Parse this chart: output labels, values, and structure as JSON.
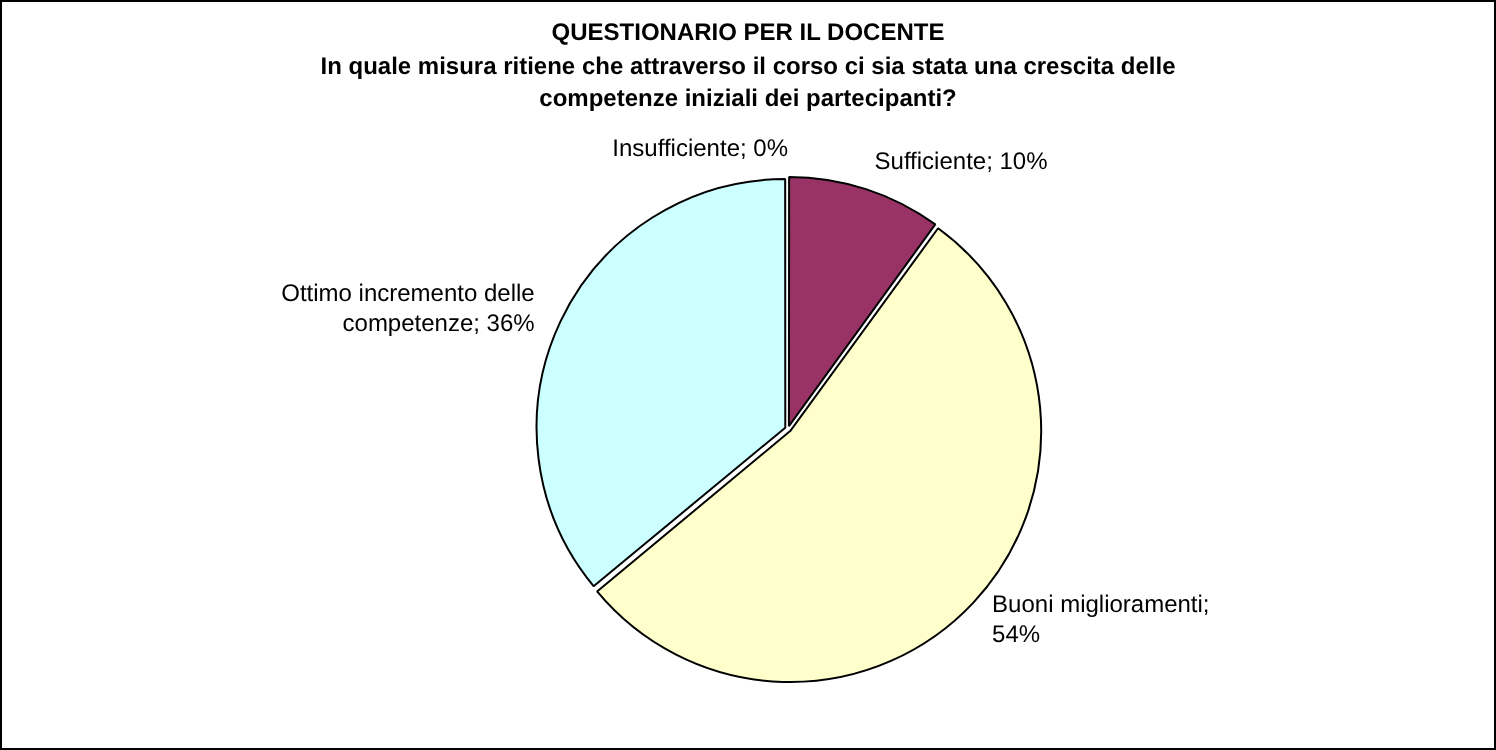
{
  "chart_data": {
    "type": "pie",
    "title": "QUESTIONARIO PER IL DOCENTE",
    "subtitle": "In quale misura ritiene che attraverso il corso ci sia stata una crescita delle competenze iniziali dei partecipanti?",
    "categories": [
      "Insufficiente",
      "Sufficiente",
      "Buoni miglioramenti",
      "Ottimo incremento delle competenze"
    ],
    "values": [
      0,
      10,
      54,
      36
    ],
    "value_labels": [
      "; 0%",
      "; 10%",
      "; 54%",
      "; 36%"
    ],
    "colors": [
      "#9999ff",
      "#993366",
      "#ffffcc",
      "#ccffff"
    ],
    "legend": false
  }
}
